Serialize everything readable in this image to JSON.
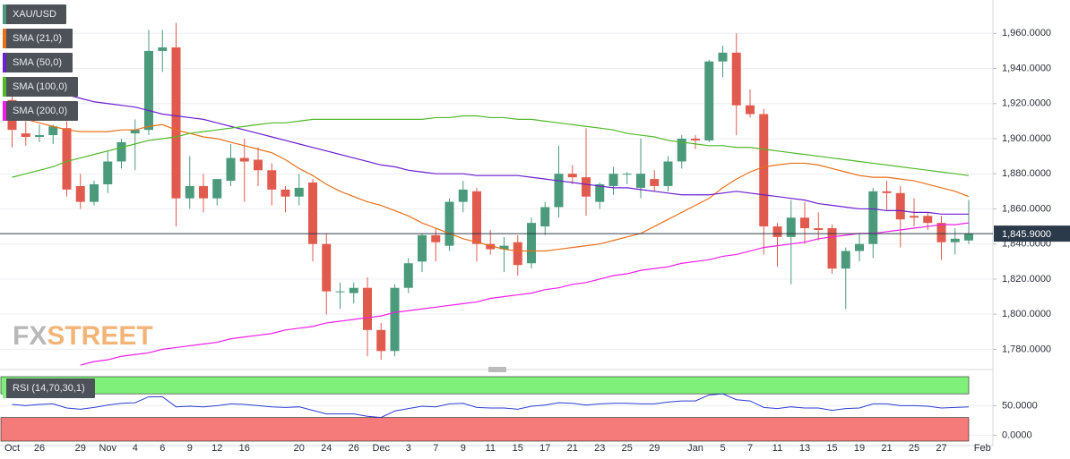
{
  "chart_data": [
    {
      "type": "candlestick",
      "categories": [
        "Oct",
        null,
        "26",
        null,
        null,
        "29",
        null,
        "Nov",
        null,
        "4",
        null,
        "6",
        null,
        "9",
        null,
        "12",
        null,
        "16",
        null,
        null,
        null,
        "20",
        null,
        "24",
        null,
        "26",
        null,
        "Dec",
        null,
        "3",
        null,
        "7",
        null,
        "9",
        null,
        "11",
        null,
        "15",
        null,
        "17",
        null,
        "21",
        null,
        "23",
        null,
        "25",
        null,
        "29",
        null,
        null,
        "Jan",
        null,
        "5",
        null,
        "7",
        null,
        "11",
        null,
        "13",
        null,
        "15",
        null,
        "19",
        null,
        "21",
        null,
        "25",
        null,
        "27",
        null,
        null,
        "Feb"
      ],
      "series": [
        {
          "name": "XAU/USD",
          "up_color": "#4a9a7b",
          "down_color": "#e15a4e",
          "open": [
            1922,
            1903,
            1901,
            1902,
            1906,
            1873,
            1864,
            1874,
            1887,
            1903,
            1905,
            1950,
            1952,
            1866,
            1873,
            1866,
            1876,
            1889,
            1888,
            1882,
            1871,
            1867,
            1875,
            1840,
            1813,
            1812,
            1815,
            1791,
            1779,
            1815,
            1830,
            1845,
            1839,
            1864,
            1870,
            1840,
            1837,
            1841,
            1829,
            1850,
            1861,
            1880,
            1878,
            1864,
            1873,
            1880,
            1872,
            1877,
            1873,
            1887,
            1900,
            1899,
            1944,
            1949,
            1919,
            1914,
            1850,
            1844,
            1855,
            1849,
            1849,
            1826,
            1836,
            1840,
            1870,
            1869,
            1856,
            1856,
            1852,
            1841,
            1842,
            null
          ],
          "high": [
            1926,
            1910,
            1908,
            1908,
            1910,
            1880,
            1876,
            1893,
            1900,
            1911,
            1962,
            1962,
            1966,
            1890,
            1880,
            1876,
            1897,
            1900,
            1895,
            1886,
            1873,
            1880,
            1877,
            1846,
            1818,
            1818,
            1821,
            1795,
            1817,
            1832,
            1846,
            1849,
            1866,
            1876,
            1872,
            1848,
            1844,
            1845,
            1855,
            1864,
            1896,
            1885,
            1906,
            1875,
            1884,
            1881,
            1900,
            1882,
            1890,
            1902,
            1902,
            1945,
            1953,
            1960,
            1928,
            1917,
            1852,
            1865,
            1864,
            1858,
            1851,
            1838,
            1846,
            1872,
            1876,
            1873,
            1866,
            1858,
            1856,
            1849,
            1865,
            null
          ],
          "low": [
            1895,
            1896,
            1898,
            1897,
            1867,
            1860,
            1862,
            1869,
            1883,
            1882,
            1902,
            1938,
            1850,
            1860,
            1858,
            1862,
            1873,
            1864,
            1873,
            1862,
            1858,
            1862,
            1830,
            1800,
            1803,
            1806,
            1776,
            1774,
            1776,
            1812,
            1824,
            1830,
            1836,
            1858,
            1830,
            1834,
            1824,
            1822,
            1826,
            1845,
            1855,
            1874,
            1856,
            1860,
            1868,
            1874,
            1866,
            1870,
            1870,
            1883,
            1894,
            1898,
            1935,
            1902,
            1912,
            1834,
            1827,
            1817,
            1840,
            1842,
            1823,
            1803,
            1830,
            1832,
            1859,
            1838,
            1850,
            1848,
            1831,
            1834,
            1840,
            null
          ],
          "close": [
            1905,
            1901,
            1902,
            1907,
            1871,
            1864,
            1874,
            1887,
            1898,
            1905,
            1950,
            1952,
            1866,
            1873,
            1866,
            1877,
            1889,
            1887,
            1882,
            1871,
            1867,
            1872,
            1840,
            1813,
            1813,
            1815,
            1791,
            1779,
            1815,
            1829,
            1845,
            1841,
            1864,
            1871,
            1840,
            1837,
            1839,
            1828,
            1852,
            1861,
            1880,
            1878,
            1867,
            1874,
            1880,
            1880,
            1880,
            1873,
            1887,
            1900,
            1899,
            1944,
            1949,
            1919,
            1914,
            1850,
            1844,
            1855,
            1849,
            1848,
            1826,
            1836,
            1840,
            1870,
            1869,
            1854,
            1855,
            1852,
            1841,
            1843,
            1845.9,
            null
          ]
        },
        {
          "name": "SMA (21,0)",
          "type": "line",
          "color": "#e8701a",
          "values": [
            1913,
            1911,
            1909,
            1907,
            1905,
            1904,
            1904,
            1904,
            1905,
            1905,
            1907,
            1908,
            1905,
            1903,
            1901,
            1900,
            1898,
            1896,
            1894,
            1892,
            1888,
            1883,
            1879,
            1874,
            1870,
            1867,
            1864,
            1862,
            1859,
            1856,
            1852,
            1849,
            1846,
            1843,
            1841,
            1839,
            1837,
            1836,
            1836,
            1836,
            1837,
            1838,
            1839,
            1840,
            1842,
            1844,
            1846,
            1850,
            1854,
            1858,
            1862,
            1866,
            1872,
            1877,
            1881,
            1884,
            1885,
            1886,
            1886,
            1885,
            1883,
            1881,
            1879,
            1878,
            1878,
            1877,
            1876,
            1874,
            1872,
            1870,
            1867,
            null
          ]
        },
        {
          "name": "SMA (50,0)",
          "type": "line",
          "color": "#6a1fd1",
          "values": [
            1933,
            1931,
            1929,
            1927,
            1925,
            1923,
            1921,
            1920,
            1919,
            1918,
            1916,
            1914,
            1913,
            1912,
            1911,
            1909,
            1907,
            1905,
            1903,
            1901,
            1899,
            1897,
            1895,
            1893,
            1891,
            1889,
            1887,
            1885,
            1884,
            1882,
            1881,
            1880,
            1880,
            1880,
            1879,
            1879,
            1879,
            1879,
            1878,
            1877,
            1876,
            1875,
            1874,
            1873,
            1872,
            1872,
            1871,
            1870,
            1869,
            1868,
            1868,
            1868,
            1869,
            1870,
            1869,
            1868,
            1867,
            1866,
            1865,
            1863,
            1862,
            1861,
            1860,
            1860,
            1859,
            1859,
            1858,
            1858,
            1857,
            1857,
            1857,
            null
          ]
        },
        {
          "name": "SMA (100,0)",
          "type": "line",
          "color": "#52b82a",
          "values": [
            1878,
            1880,
            1882,
            1884,
            1887,
            1889,
            1891,
            1893,
            1895,
            1897,
            1899,
            1900,
            1901,
            1903,
            1904,
            1905,
            1906,
            1907,
            1908,
            1909,
            1909,
            1910,
            1911,
            1911,
            1911,
            1911,
            1911,
            1911,
            1911,
            1911,
            1911,
            1912,
            1912,
            1913,
            1913,
            1912,
            1912,
            1911,
            1911,
            1910,
            1909,
            1908,
            1907,
            1906,
            1905,
            1903,
            1902,
            1901,
            1899,
            1898,
            1897,
            1896,
            1896,
            1895,
            1895,
            1894,
            1893,
            1892,
            1891,
            1890,
            1889,
            1888,
            1887,
            1886,
            1885,
            1884,
            1883,
            1882,
            1881,
            1880,
            1879,
            null
          ]
        },
        {
          "name": "SMA (200,0)",
          "type": "line",
          "color": "#ee1ee6",
          "values": [
            null,
            null,
            null,
            null,
            null,
            1771,
            1773,
            1774,
            1776,
            1777,
            1778,
            1780,
            1781,
            1782,
            1783,
            1784,
            1786,
            1787,
            1788,
            1789,
            1791,
            1792,
            1793,
            1795,
            1796,
            1797,
            1798,
            1799,
            1801,
            1802,
            1803,
            1804,
            1805,
            1806,
            1807,
            1809,
            1810,
            1811,
            1812,
            1814,
            1815,
            1817,
            1818,
            1820,
            1822,
            1823,
            1825,
            1826,
            1827,
            1829,
            1830,
            1831,
            1833,
            1834,
            1836,
            1838,
            1839,
            1840,
            1841,
            1843,
            1844,
            1845,
            1846,
            1846,
            1847,
            1848,
            1849,
            1850,
            1851,
            1851,
            1852,
            null
          ]
        }
      ],
      "ylim": [
        1770,
        1979
      ],
      "yticks": [
        {
          "value": 1780,
          "label": "1,780.0000"
        },
        {
          "value": 1800,
          "label": "1,800.0000"
        },
        {
          "value": 1820,
          "label": "1,820.0000"
        },
        {
          "value": 1840,
          "label": "1,840.0000"
        },
        {
          "value": 1860,
          "label": "1,860.0000"
        },
        {
          "value": 1880,
          "label": "1,880.0000"
        },
        {
          "value": 1900,
          "label": "1,900.0000"
        },
        {
          "value": 1920,
          "label": "1,920.0000"
        },
        {
          "value": 1940,
          "label": "1,940.0000"
        },
        {
          "value": 1960,
          "label": "1,960.0000"
        }
      ],
      "grid": true,
      "last_price": {
        "value": 1845.9,
        "label": "1,845.9000"
      },
      "watermark": [
        "FX",
        "STREET"
      ]
    },
    {
      "type": "line",
      "series": [
        {
          "name": "RSI (14,70,30,1)",
          "color": "#2b3cd0",
          "values": [
            52,
            50,
            52,
            53,
            46,
            44,
            47,
            51,
            54,
            55,
            65,
            65,
            48,
            49,
            48,
            50,
            53,
            52,
            50,
            48,
            47,
            48,
            42,
            36,
            36,
            36,
            32,
            30,
            41,
            45,
            49,
            48,
            53,
            54,
            47,
            46,
            46,
            44,
            49,
            51,
            55,
            54,
            51,
            53,
            54,
            54,
            53,
            53,
            56,
            58,
            58,
            68,
            70,
            60,
            58,
            47,
            45,
            48,
            46,
            46,
            42,
            45,
            46,
            53,
            53,
            50,
            50,
            49,
            46,
            47,
            48,
            null
          ]
        }
      ],
      "overbought": 70,
      "overbought_color": "#7ff07a",
      "oversold": 30,
      "oversold_color": "#f57a7a",
      "ylim": [
        -16,
        102
      ],
      "yticks": [
        {
          "value": 0,
          "label": "0.0000"
        },
        {
          "value": 50,
          "label": "50.0000"
        }
      ]
    }
  ]
}
